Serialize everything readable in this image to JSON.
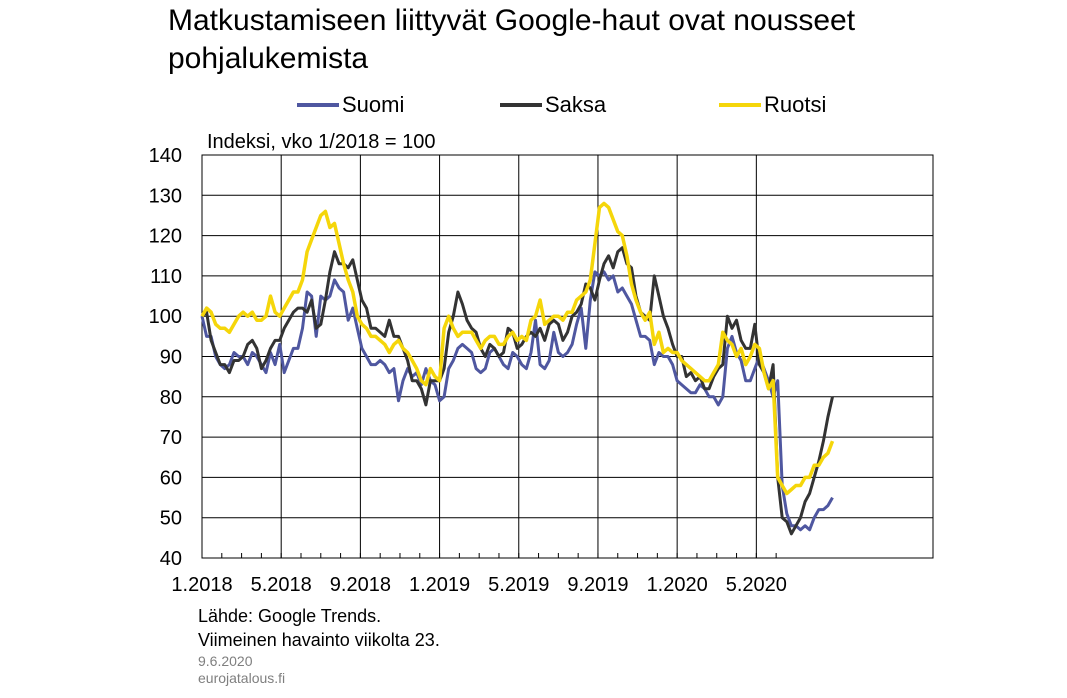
{
  "chart_data": {
    "type": "line",
    "title": "Matkustamiseen liittyvät Google-haut ovat nousseet pohjalukemista",
    "ylabel": "Indeksi, vko 1/2018 = 100",
    "ylim": [
      40,
      140
    ],
    "yticks": [
      "40",
      "50",
      "60",
      "70",
      "80",
      "90",
      "100",
      "110",
      "120",
      "130",
      "140"
    ],
    "xticks": [
      "1.2018",
      "5.2018",
      "9.2018",
      "1.2019",
      "5.2019",
      "9.2019",
      "1.2020",
      "5.2020"
    ],
    "grid": true,
    "legend_position": "top",
    "x_start_week": "1/2018",
    "x_end_week": "23/2020",
    "series": [
      {
        "name": "Suomi",
        "color": "#4F57A0",
        "values": [
          100,
          95,
          95,
          90,
          88,
          87,
          88,
          91,
          90,
          90,
          88,
          91,
          90,
          88,
          86,
          91,
          88,
          93,
          86,
          89,
          92,
          92,
          97,
          106,
          105,
          95,
          105,
          104,
          105,
          109,
          107,
          106,
          99,
          102,
          97,
          92,
          90,
          88,
          88,
          89,
          88,
          86,
          87,
          79,
          84,
          87,
          85,
          86,
          83,
          87,
          84,
          83,
          79,
          80,
          87,
          89,
          92,
          93,
          92,
          91,
          87,
          86,
          87,
          91,
          92,
          90,
          88,
          87,
          91,
          90,
          88,
          87,
          91,
          99,
          88,
          87,
          89,
          96,
          91,
          90,
          91,
          93,
          98,
          102,
          92,
          104,
          111,
          110,
          111,
          109,
          110,
          106,
          107,
          105,
          103,
          99,
          95,
          95,
          94,
          88,
          91,
          90,
          90,
          88,
          84,
          83,
          82,
          81,
          81,
          83,
          82,
          80,
          80,
          78,
          80,
          92,
          95,
          91,
          89,
          84,
          84,
          87,
          90,
          87,
          84,
          80,
          84,
          58,
          51,
          48,
          48,
          47,
          48,
          47,
          50,
          52,
          52,
          53,
          55
        ]
      },
      {
        "name": "Saksa",
        "color": "#333333",
        "values": [
          100,
          101,
          94,
          91,
          88,
          88,
          86,
          89,
          89,
          90,
          93,
          94,
          92,
          87,
          89,
          92,
          94,
          94,
          97,
          99,
          101,
          102,
          102,
          101,
          104,
          97,
          98,
          104,
          111,
          116,
          113,
          113,
          112,
          114,
          109,
          104,
          102,
          97,
          97,
          96,
          95,
          99,
          95,
          95,
          92,
          89,
          84,
          84,
          82,
          78,
          84,
          84,
          84,
          87,
          96,
          100,
          106,
          103,
          99,
          97,
          96,
          92,
          90,
          93,
          92,
          90,
          91,
          97,
          96,
          92,
          93,
          95,
          96,
          95,
          97,
          94,
          98,
          99,
          98,
          94,
          96,
          100,
          101,
          103,
          108,
          107,
          104,
          109,
          113,
          115,
          112,
          116,
          117,
          113,
          112,
          105,
          101,
          100,
          99,
          110,
          105,
          100,
          97,
          93,
          90,
          90,
          85,
          86,
          84,
          85,
          82,
          82,
          85,
          87,
          88,
          100,
          97,
          99,
          94,
          92,
          92,
          98,
          88,
          86,
          82,
          88,
          60,
          50,
          49,
          46,
          48,
          50,
          54,
          56,
          60,
          64,
          69,
          75,
          80
        ]
      },
      {
        "name": "Ruotsi",
        "color": "#F5D60A",
        "values": [
          100,
          102,
          101,
          98,
          97,
          97,
          96,
          98,
          100,
          101,
          100,
          101,
          99,
          99,
          100,
          105,
          101,
          100,
          102,
          104,
          106,
          106,
          109,
          116,
          119,
          122,
          125,
          126,
          122,
          123,
          118,
          113,
          109,
          106,
          100,
          98,
          97,
          95,
          95,
          94,
          93,
          91,
          93,
          94,
          92,
          91,
          89,
          87,
          84,
          83,
          87,
          85,
          84,
          97,
          100,
          97,
          95,
          96,
          96,
          96,
          94,
          92,
          94,
          95,
          95,
          93,
          93,
          95,
          96,
          94,
          95,
          94,
          99,
          100,
          104,
          98,
          99,
          100,
          100,
          99,
          101,
          101,
          104,
          105,
          106,
          109,
          118,
          127,
          128,
          127,
          124,
          121,
          120,
          115,
          108,
          104,
          101,
          99,
          101,
          93,
          96,
          91,
          92,
          91,
          91,
          89,
          88,
          87,
          86,
          85,
          84,
          84,
          86,
          88,
          96,
          94,
          93,
          90,
          92,
          88,
          90,
          93,
          92,
          86,
          82,
          84,
          60,
          58,
          56,
          57,
          58,
          58,
          60,
          60,
          63,
          63,
          65,
          66,
          69
        ]
      }
    ]
  },
  "unit_label": "Indeksi, vko 1/2018 = 100",
  "source": "Lähde: Google Trends.",
  "note": "Viimeinen havainto viikolta 23.",
  "date": "9.6.2020",
  "site": "eurojatalous.fi"
}
